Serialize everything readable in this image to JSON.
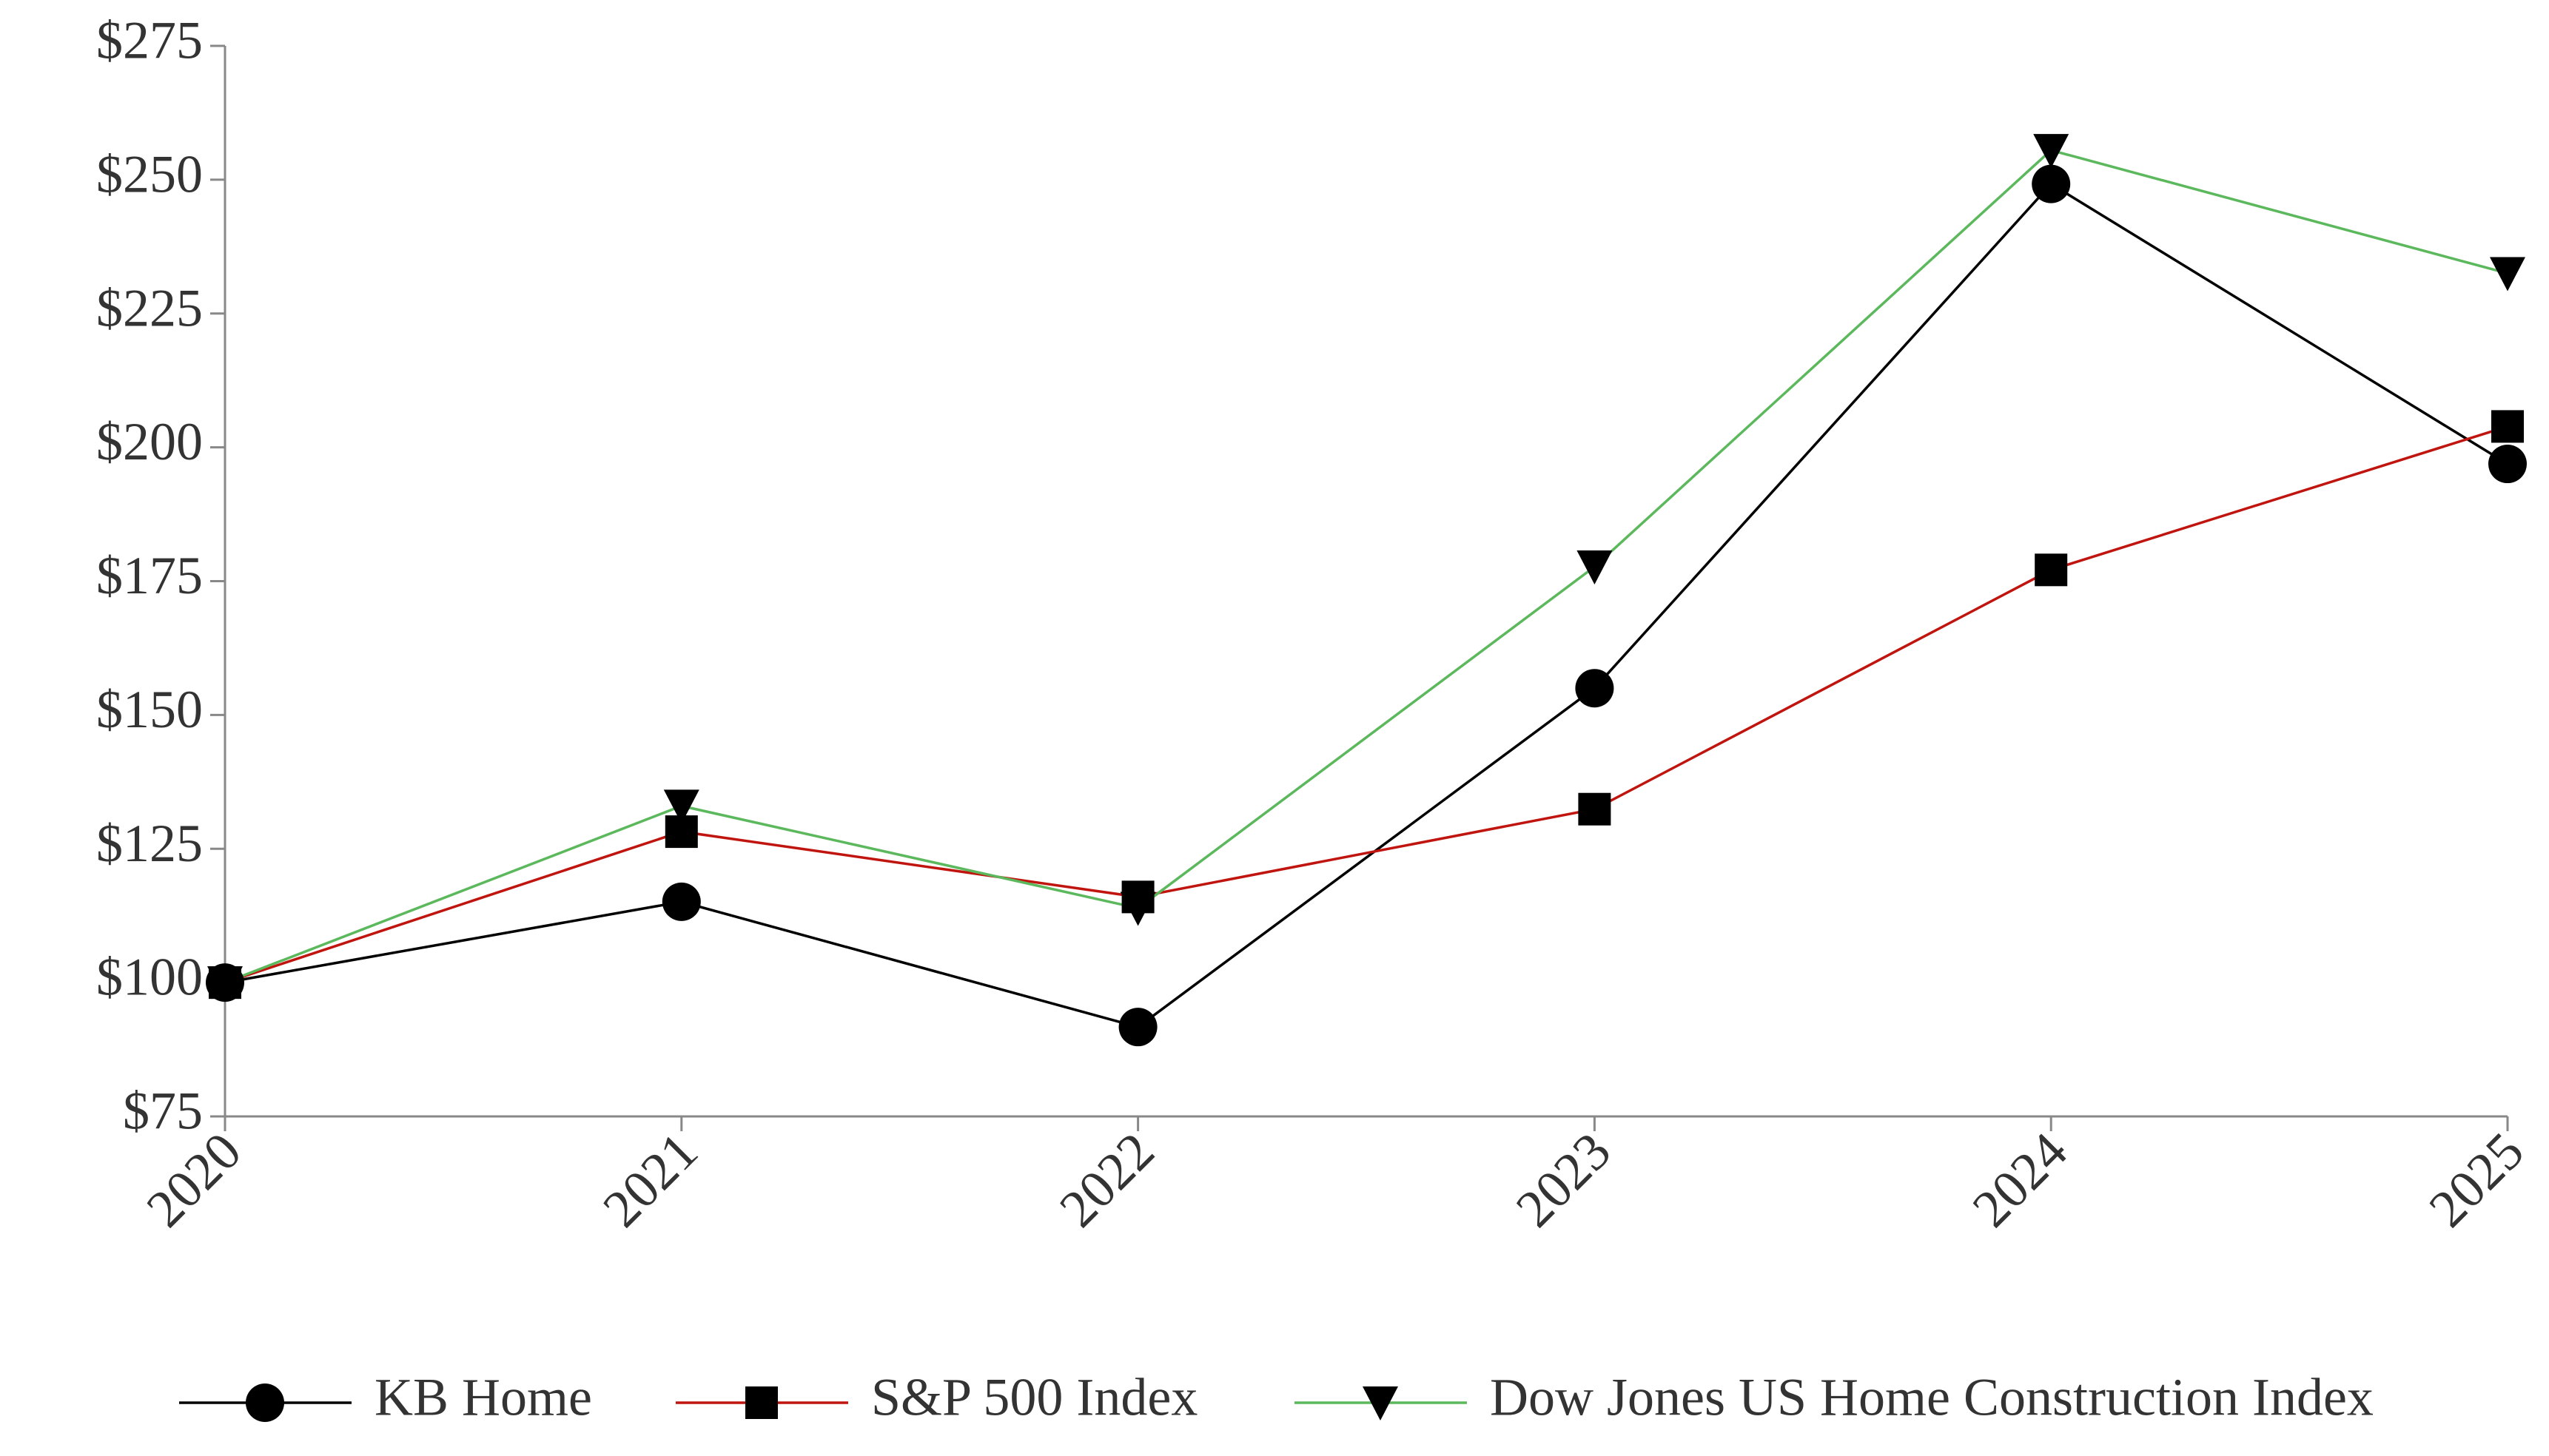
{
  "chart_data": {
    "type": "line",
    "categories": [
      "2020",
      "2021",
      "2022",
      "2023",
      "2024",
      "2025"
    ],
    "series": [
      {
        "name": "KB Home",
        "color": "#000000",
        "marker": "circle",
        "values": [
          100,
          115.1,
          91.7,
          155,
          249.2,
          196.9
        ]
      },
      {
        "name": "S&P 500 Index",
        "color": "#c0150f",
        "marker": "square",
        "values": [
          100,
          128.2,
          116,
          132.4,
          177.1,
          203.9
        ]
      },
      {
        "name": "Dow Jones US Home Construction Index",
        "color": "#5cb85c",
        "marker": "triangle-down",
        "values": [
          100,
          133,
          113.9,
          177.7,
          255.5,
          232.5
        ]
      }
    ],
    "ylim": [
      75,
      275
    ],
    "yticks": [
      {
        "value": 75,
        "label": "$75"
      },
      {
        "value": 100,
        "label": "$100"
      },
      {
        "value": 125,
        "label": "$125"
      },
      {
        "value": 150,
        "label": "$150"
      },
      {
        "value": 175,
        "label": "$175"
      },
      {
        "value": 200,
        "label": "$200"
      },
      {
        "value": 225,
        "label": "$225"
      },
      {
        "value": 250,
        "label": "$250"
      },
      {
        "value": 275,
        "label": "$275"
      }
    ],
    "grid": false,
    "legend": "bottom"
  }
}
